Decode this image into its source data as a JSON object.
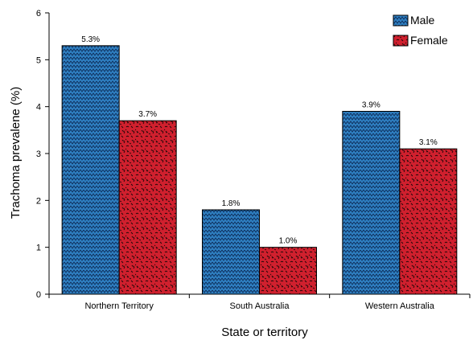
{
  "chart_data": {
    "type": "bar",
    "title": "",
    "xlabel": "State or territory",
    "ylabel": "Trachoma prevalene (%)",
    "ylim": [
      0,
      6
    ],
    "yticks": [
      0,
      1,
      2,
      3,
      4,
      5,
      6
    ],
    "grid": false,
    "legend_position": "top-right",
    "categories": [
      "Northern Territory",
      "South Australia",
      "Western Australia"
    ],
    "series": [
      {
        "name": "Male",
        "values": [
          5.3,
          1.8,
          3.9
        ],
        "labels": [
          "5.3%",
          "1.8%",
          "3.9%"
        ],
        "color": "#2f7fc1",
        "pattern": "zigzag"
      },
      {
        "name": "Female",
        "values": [
          3.7,
          1.0,
          3.1
        ],
        "labels": [
          "3.7%",
          "1.0%",
          "3.1%"
        ],
        "color": "#d0202e",
        "pattern": "squiggle"
      }
    ]
  }
}
